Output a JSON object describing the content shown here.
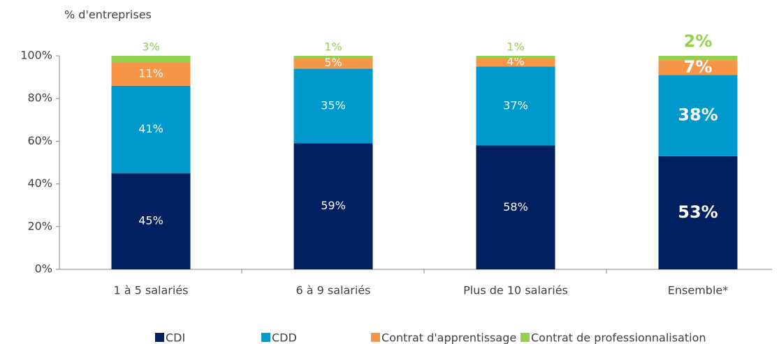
{
  "chart_data": {
    "type": "stacked_bar",
    "y_axis_label": "% d'entreprises",
    "categories": [
      "1 à 5 salariés",
      "6 à 9 salariés",
      "Plus de 10 salariés",
      "Ensemble*"
    ],
    "emphasis": [
      false,
      false,
      false,
      true
    ],
    "series": [
      {
        "name": "CDI",
        "color": "#002060",
        "label_color": "#ffffff",
        "values": [
          45,
          59,
          58,
          53
        ],
        "value_labels": [
          "45%",
          "59%",
          "58%",
          "53%"
        ]
      },
      {
        "name": "CDD",
        "color": "#0099cc",
        "label_color": "#ffffff",
        "values": [
          41,
          35,
          37,
          38
        ],
        "value_labels": [
          "41%",
          "35%",
          "37%",
          "38%"
        ]
      },
      {
        "name": "Contrat d'apprentissage",
        "color": "#f79646",
        "label_color": "#ffffff",
        "values": [
          11,
          5,
          4,
          7
        ],
        "value_labels": [
          "11%",
          "5%",
          "4%",
          "7%"
        ]
      },
      {
        "name": "Contrat de professionnalisation",
        "color": "#92d050",
        "label_color": "#92d050",
        "label_position": "above",
        "values": [
          3,
          1,
          1,
          2
        ],
        "value_labels": [
          "3%",
          "1%",
          "1%",
          "2%"
        ]
      }
    ],
    "ylim": [
      0,
      100
    ],
    "yticks": [
      {
        "value": 0,
        "label": "0%"
      },
      {
        "value": 20,
        "label": "20%"
      },
      {
        "value": 40,
        "label": "40%"
      },
      {
        "value": 60,
        "label": "60%"
      },
      {
        "value": 80,
        "label": "80%"
      },
      {
        "value": 100,
        "label": "100%"
      }
    ],
    "grid": false,
    "legend": "bottom"
  }
}
